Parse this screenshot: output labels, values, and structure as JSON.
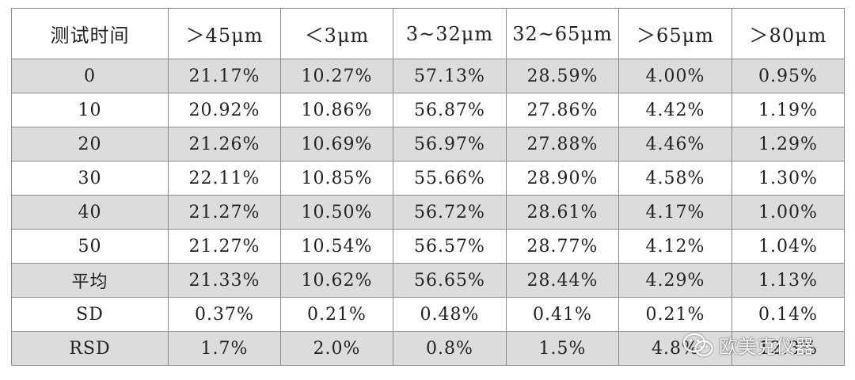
{
  "table": {
    "headers": [
      "测试时间",
      "＞45μm",
      "＜3μm",
      "3~32μm",
      "32~65μm",
      "＞65μm",
      "＞80μm"
    ],
    "rows": [
      [
        "0",
        "21.17%",
        "10.27%",
        "57.13%",
        "28.59%",
        "4.00%",
        "0.95%"
      ],
      [
        "10",
        "20.92%",
        "10.86%",
        "56.87%",
        "27.86%",
        "4.42%",
        "1.19%"
      ],
      [
        "20",
        "21.26%",
        "10.69%",
        "56.97%",
        "27.88%",
        "4.46%",
        "1.29%"
      ],
      [
        "30",
        "22.11%",
        "10.85%",
        "55.66%",
        "28.90%",
        "4.58%",
        "1.30%"
      ],
      [
        "40",
        "21.27%",
        "10.50%",
        "56.72%",
        "28.61%",
        "4.17%",
        "1.00%"
      ],
      [
        "50",
        "21.27%",
        "10.54%",
        "56.57%",
        "28.77%",
        "4.12%",
        "1.04%"
      ],
      [
        "平均",
        "21.33%",
        "10.62%",
        "56.65%",
        "28.44%",
        "4.29%",
        "1.13%"
      ],
      [
        "SD",
        "0.37%",
        "0.21%",
        "0.48%",
        "0.41%",
        "0.21%",
        "0.14%"
      ],
      [
        "RSD",
        "1.7%",
        "2.0%",
        "0.8%",
        "1.5%",
        "4.8%",
        "12.3%"
      ]
    ],
    "row_shading": [
      "shade",
      "plain",
      "shade",
      "plain",
      "shade",
      "plain",
      "shade",
      "plain",
      "shade"
    ]
  },
  "watermark": {
    "text": "欧美克仪器",
    "icon": "wechat-icon"
  },
  "colors": {
    "shaded_row": "#dcdcdc",
    "border": "#8a8a8a",
    "text": "#222222"
  }
}
